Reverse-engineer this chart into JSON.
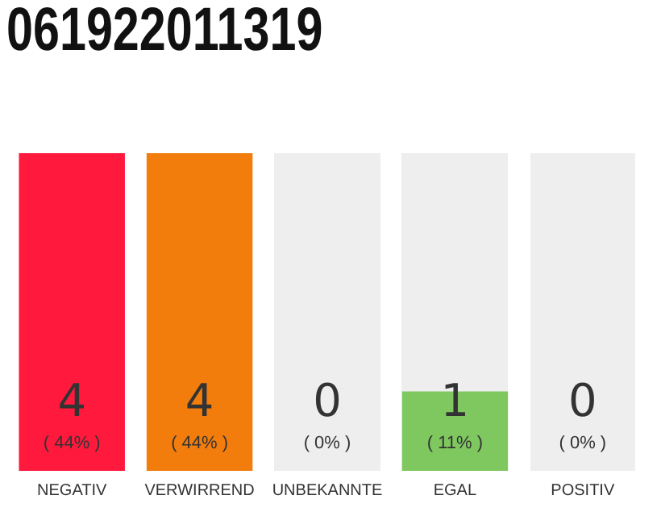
{
  "chart_data": {
    "type": "bar",
    "title": "061922011319",
    "categories": [
      "NEGATIV",
      "VERWIRREND",
      "UNBEKANNTE",
      "EGAL",
      "POSITIV"
    ],
    "values": [
      44,
      44,
      0,
      11,
      0
    ],
    "colors": [
      "#ff1a3d",
      "#f27d0c",
      "#eeeeee",
      "#7ec85f",
      "#eeeeee"
    ],
    "value_labels": [
      "( 44% )",
      "( 44% )",
      "( 0% )",
      "( 11% )",
      "( 0% )"
    ],
    "annotations": [
      "4",
      "4",
      "0",
      "1",
      "0"
    ],
    "tick_labels": "x",
    "grid": false,
    "legend": false
  }
}
